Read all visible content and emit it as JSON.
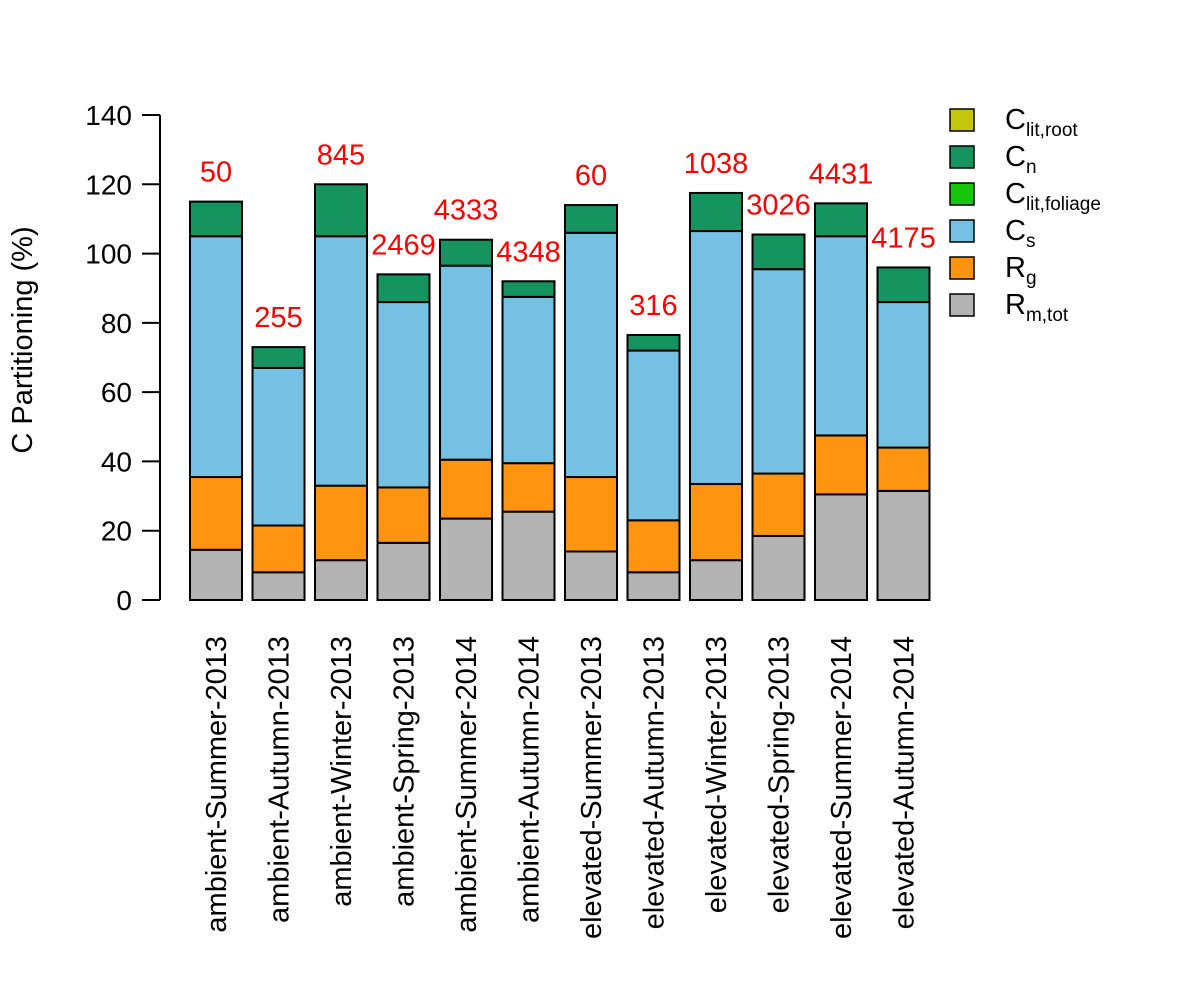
{
  "chart_data": {
    "type": "bar",
    "stacked": true,
    "title": "",
    "xlabel": "",
    "ylabel": "C Partitioning (%)",
    "ylim": [
      0,
      140
    ],
    "yticks": [
      0,
      20,
      40,
      60,
      80,
      100,
      120,
      140
    ],
    "grid": false,
    "legend_position": "top-right",
    "categories": [
      "ambient-Summer-2013",
      "ambient-Autumn-2013",
      "ambient-Winter-2013",
      "ambient-Spring-2013",
      "ambient-Summer-2014",
      "ambient-Autumn-2014",
      "elevated-Summer-2013",
      "elevated-Autumn-2013",
      "elevated-Winter-2013",
      "elevated-Spring-2013",
      "elevated-Summer-2014",
      "elevated-Autumn-2014"
    ],
    "bar_labels": [
      "50",
      "255",
      "845",
      "2469",
      "4333",
      "4348",
      "60",
      "316",
      "1038",
      "3026",
      "4431",
      "4175"
    ],
    "bar_label_color": "#ff0000",
    "series": [
      {
        "name": "R",
        "sub": "m,tot",
        "color": "#b3b3b3",
        "values": [
          14.5,
          8,
          11.5,
          16.5,
          23.5,
          25.5,
          14,
          8,
          11.5,
          18.5,
          30.5,
          31.5
        ]
      },
      {
        "name": "R",
        "sub": "g",
        "color": "#ff9411",
        "values": [
          21,
          13.5,
          21.5,
          16,
          17,
          14,
          21.5,
          15,
          22,
          18,
          17,
          12.5
        ]
      },
      {
        "name": "C",
        "sub": "s",
        "color": "#75c0e3",
        "values": [
          69.5,
          45.5,
          72,
          53.5,
          56,
          48,
          70.5,
          49,
          73,
          59,
          57.5,
          42
        ]
      },
      {
        "name": "C",
        "sub": "lit,foliage",
        "color": "#17c70d",
        "values": [
          0,
          0,
          0,
          0,
          0,
          0,
          0,
          0,
          0,
          0,
          0,
          0
        ]
      },
      {
        "name": "C",
        "sub": "n",
        "color": "#159460",
        "values": [
          10,
          6,
          15,
          8,
          7.5,
          4.5,
          8,
          4.5,
          11,
          10,
          9.5,
          10
        ]
      },
      {
        "name": "C",
        "sub": "lit,root",
        "color": "#c5c50c",
        "values": [
          0,
          0,
          0,
          0,
          0,
          0,
          0,
          0,
          0,
          0,
          0,
          0
        ]
      }
    ],
    "legend_order": [
      5,
      4,
      3,
      2,
      1,
      0
    ]
  }
}
